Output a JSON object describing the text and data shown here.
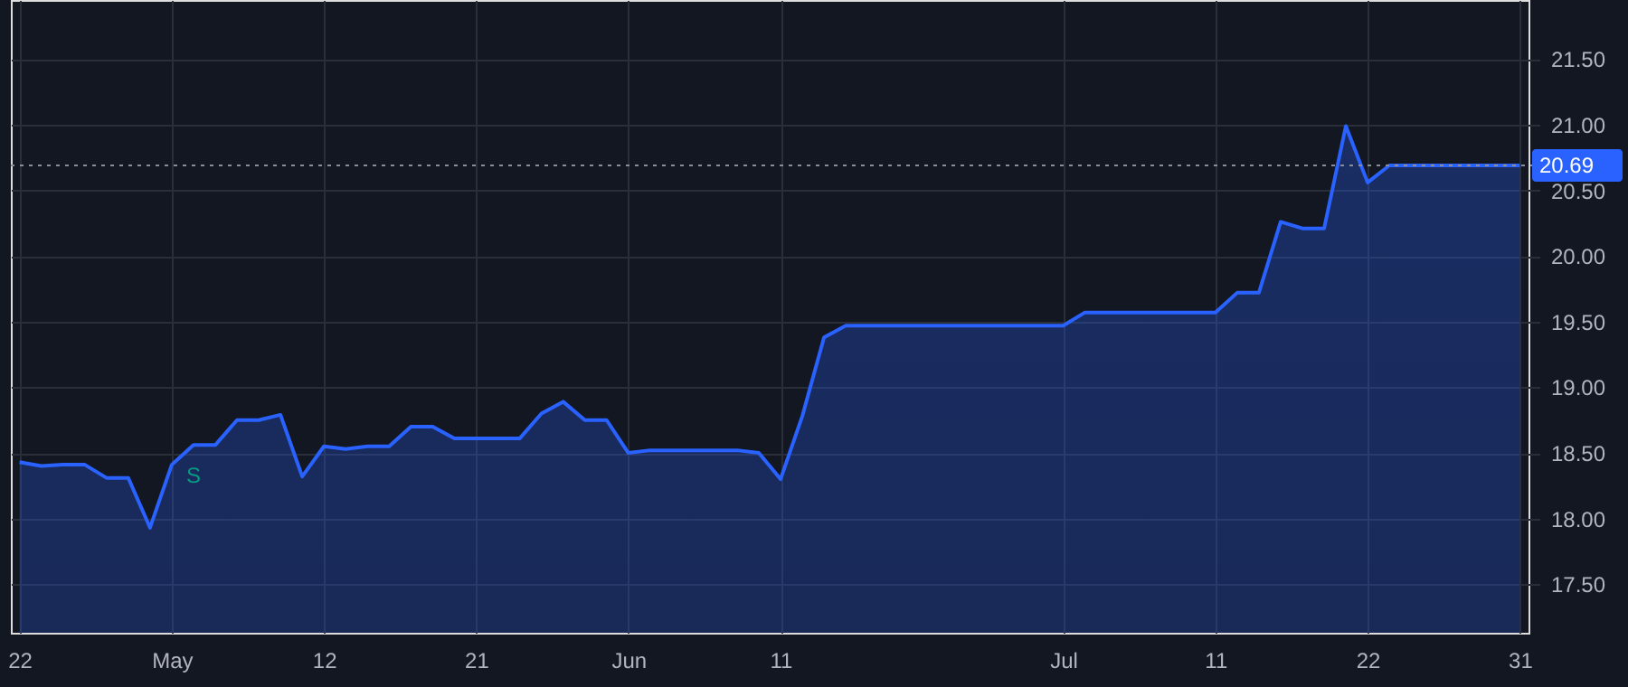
{
  "chart_data": {
    "type": "area",
    "categories": [
      "22",
      null,
      null,
      null,
      null,
      null,
      null,
      "May",
      null,
      null,
      null,
      null,
      null,
      null,
      "12",
      null,
      null,
      null,
      null,
      null,
      null,
      "21",
      null,
      null,
      null,
      null,
      null,
      null,
      "Jun",
      null,
      null,
      null,
      null,
      null,
      null,
      "11",
      null,
      null,
      null,
      null,
      null,
      null,
      null,
      null,
      null,
      null,
      null,
      null,
      "Jul",
      null,
      null,
      null,
      null,
      null,
      null,
      "11",
      null,
      null,
      null,
      null,
      null,
      null,
      "22",
      null,
      null,
      null,
      null,
      null,
      null,
      "31"
    ],
    "series": [
      {
        "color": "#2962ff",
        "values": [
          18.43,
          18.4,
          18.41,
          18.41,
          18.31,
          18.31,
          17.93,
          18.41,
          18.56,
          18.56,
          18.75,
          18.75,
          18.79,
          18.32,
          18.55,
          18.53,
          18.55,
          18.55,
          18.7,
          18.7,
          18.61,
          18.61,
          18.61,
          18.61,
          18.8,
          18.89,
          18.75,
          18.75,
          18.5,
          18.52,
          18.52,
          18.52,
          18.52,
          18.52,
          18.5,
          18.3,
          18.78,
          19.38,
          19.47,
          19.47,
          19.47,
          19.47,
          19.47,
          19.47,
          19.47,
          19.47,
          19.47,
          19.47,
          19.47,
          19.57,
          19.57,
          19.57,
          19.57,
          19.57,
          19.57,
          19.57,
          19.72,
          19.72,
          20.26,
          20.21,
          20.21,
          20.99,
          20.56,
          20.69,
          20.69,
          20.69,
          20.69,
          20.69,
          20.69,
          20.69
        ],
        "value_labels": [
          null,
          null,
          null,
          null,
          null,
          null,
          null,
          null,
          "S",
          null,
          null,
          null,
          null,
          null,
          null,
          null,
          null,
          null,
          null,
          null,
          null,
          null,
          null,
          null,
          null,
          null,
          null,
          null,
          null,
          null,
          null,
          null,
          null,
          null,
          null,
          null,
          null,
          null,
          null,
          null,
          null,
          null,
          null,
          null,
          null,
          null,
          null,
          null,
          null,
          null,
          null,
          null,
          null,
          null,
          null,
          null,
          null,
          null,
          null,
          null,
          null,
          null,
          null,
          null,
          null,
          null,
          null,
          null,
          null,
          null
        ]
      }
    ],
    "ylim": [
      17.13,
      21.95
    ],
    "yticks": [
      {
        "value": 17.5,
        "label": "17.50"
      },
      {
        "value": 18.0,
        "label": "18.00"
      },
      {
        "value": 18.5,
        "label": "18.50"
      },
      {
        "value": 19.0,
        "label": "19.00"
      },
      {
        "value": 19.5,
        "label": "19.50"
      },
      {
        "value": 20.0,
        "label": "20.00"
      },
      {
        "value": 20.5,
        "label": "20.50"
      },
      {
        "value": 21.0,
        "label": "21.00"
      },
      {
        "value": 21.5,
        "label": "21.50"
      }
    ],
    "ref_lines": [
      {
        "axis": "y",
        "value": 20.69,
        "label": "20.69",
        "line_style": "dotted"
      }
    ],
    "grid": true,
    "line_style": "solid",
    "marker": "none"
  }
}
